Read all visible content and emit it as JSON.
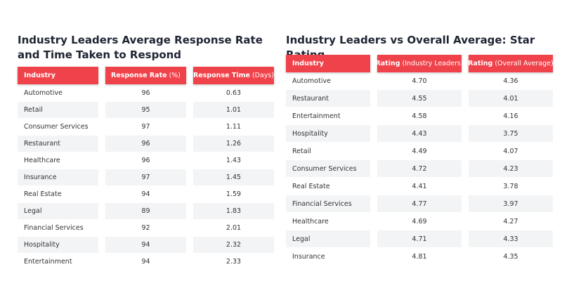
{
  "tables": [
    {
      "title": "Industry Leaders Average Response Rate and Time Taken to Respond",
      "headers": [
        {
          "main": "Industry"
        },
        {
          "main": "Response Rate",
          "unit": "(%)"
        },
        {
          "main": "Response Time",
          "unit": "(Days)"
        }
      ],
      "rows": [
        [
          "Automotive",
          "96",
          "0.63"
        ],
        [
          "Retail",
          "95",
          "1.01"
        ],
        [
          "Consumer Services",
          "97",
          "1.11"
        ],
        [
          "Restaurant",
          "96",
          "1.26"
        ],
        [
          "Healthcare",
          "96",
          "1.43"
        ],
        [
          "Insurance",
          "97",
          "1.45"
        ],
        [
          "Real Estate",
          "94",
          "1.59"
        ],
        [
          "Legal",
          "89",
          "1.83"
        ],
        [
          "Financial Services",
          "92",
          "2.01"
        ],
        [
          "Hospitality",
          "94",
          "2.32"
        ],
        [
          "Entertainment",
          "94",
          "2.33"
        ]
      ]
    },
    {
      "title": "Industry Leaders vs Overall Average: Star Rating",
      "headers": [
        {
          "main": "Industry"
        },
        {
          "main": "Rating",
          "unit": "(Industry Leaders)"
        },
        {
          "main": "Rating",
          "unit": "(Overall Average)"
        }
      ],
      "rows": [
        [
          "Automotive",
          "4.70",
          "4.36"
        ],
        [
          "Restaurant",
          "4.55",
          "4.01"
        ],
        [
          "Entertainment",
          "4.58",
          "4.16"
        ],
        [
          "Hospitality",
          "4.43",
          "3.75"
        ],
        [
          "Retail",
          "4.49",
          "4.07"
        ],
        [
          "Consumer Services",
          "4.72",
          "4.23"
        ],
        [
          "Real Estate",
          "4.41",
          "3.78"
        ],
        [
          "Financial Services",
          "4.77",
          "3.97"
        ],
        [
          "Healthcare",
          "4.69",
          "4.27"
        ],
        [
          "Legal",
          "4.71",
          "4.33"
        ],
        [
          "Insurance",
          "4.81",
          "4.35"
        ]
      ]
    }
  ]
}
